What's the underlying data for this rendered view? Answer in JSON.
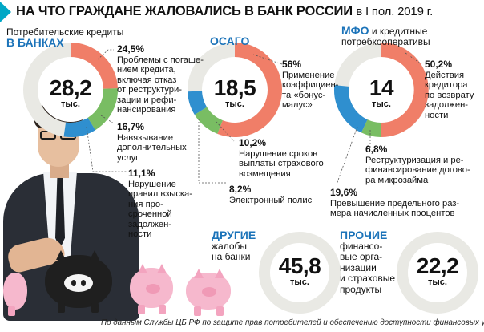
{
  "title": {
    "main": "НА ЧТО ГРАЖДАНЕ ЖАЛОВАЛИСЬ В БАНК РОССИИ",
    "period": "в I пол. 2019 г."
  },
  "colors": {
    "accent": "#1b73b9",
    "coral": "#f07e68",
    "green": "#79bd63",
    "blue": "#2f8fcf",
    "grey": "#e9e9e4",
    "title_arrow": "#00a8c6"
  },
  "sections": {
    "banks": {
      "head_line1": "Потребительские кредиты",
      "head_line2": "В БАНКАХ",
      "total": "28,2",
      "unit": "тыс."
    },
    "osago": {
      "head": "ОСАГО",
      "total": "18,5",
      "unit": "тыс."
    },
    "mfo": {
      "head_hl": "МФО",
      "head_rest": " и кредитные",
      "head_line2": "потребкооперативы",
      "total": "14",
      "unit": "тыс."
    },
    "other": {
      "head_hl": "ДРУГИЕ",
      "head_line2": "жалобы",
      "head_line3": "на банки",
      "total": "45,8",
      "unit": "тыс."
    },
    "misc": {
      "head_hl": "ПРОЧИЕ",
      "head_line2": "финансо-",
      "head_line3": "вые орга-",
      "head_line4": "низации",
      "head_line5": "и страховые",
      "head_line6": "продукты",
      "total": "22,2",
      "unit": "тыс."
    }
  },
  "labels": {
    "b1": {
      "pct": "24,5%",
      "l1": "Проблемы с погаше-",
      "l2": "нием кредита,",
      "l3": "включая отказ",
      "l4": "от реструктури-",
      "l5": "зации и рефи-",
      "l6": "нансирования"
    },
    "b2": {
      "pct": "16,7%",
      "l1": "Навязывание",
      "l2": "дополнительных",
      "l3": "услуг"
    },
    "b3": {
      "pct": "11,1%",
      "l1": "Нарушение",
      "l2": "правил взыска-",
      "l3": "ния про-",
      "l4": "сроченной",
      "l5": "задолжен-",
      "l6": "ности"
    },
    "o1": {
      "pct": "56%",
      "l1": "Применение",
      "l2": "коэффициен-",
      "l3": "та «бонус-",
      "l4": "малус»"
    },
    "o2": {
      "pct": "10,2%",
      "l1": "Нарушение сроков",
      "l2": "выплаты страхового",
      "l3": "возмещения"
    },
    "o3": {
      "pct": "8,2%",
      "l1": "Электронный полис"
    },
    "m1": {
      "pct": "50,2%",
      "l1": "Действия",
      "l2": "кредитора",
      "l3": "по возврату",
      "l4": "задолжен-",
      "l5": "ности"
    },
    "m2": {
      "pct": "6,8%",
      "l1": "Реструктуризация и ре-",
      "l2": "финансирование догово-",
      "l3": "ра микрозайма"
    },
    "m3": {
      "pct": "19,6%",
      "l1": "Превышение предельного раз-",
      "l2": "мера начисленных процентов"
    }
  },
  "footer": "По данным Службы ЦБ РФ по защите прав потребителей и обеспечению доступности финансовых услуг",
  "chart_data": [
    {
      "type": "pie",
      "title": "Потребительские кредиты в банках",
      "total": "28,2 тыс.",
      "categories": [
        "Проблемы с погашением кредита, включая отказ от реструктуризации и рефинансирования",
        "Навязывание дополнительных услуг",
        "Нарушение правил взыскания просроченной задолженности"
      ],
      "values": [
        24.5,
        16.7,
        11.1
      ],
      "colors": [
        "#f07e68",
        "#79bd63",
        "#2f8fcf"
      ]
    },
    {
      "type": "pie",
      "title": "ОСАГО",
      "total": "18,5 тыс.",
      "categories": [
        "Применение коэффициента «бонус-малус»",
        "Нарушение сроков выплаты страхового возмещения",
        "Электронный полис"
      ],
      "values": [
        56,
        10.2,
        8.2
      ],
      "colors": [
        "#f07e68",
        "#79bd63",
        "#2f8fcf"
      ]
    },
    {
      "type": "pie",
      "title": "МФО и кредитные потребкооперативы",
      "total": "14 тыс.",
      "categories": [
        "Действия кредитора по возврату задолженности",
        "Реструктуризация и рефинансирование договора микрозайма",
        "Превышение предельного размера начисленных процентов"
      ],
      "values": [
        50.2,
        6.8,
        19.6
      ],
      "colors": [
        "#f07e68",
        "#79bd63",
        "#2f8fcf"
      ]
    },
    {
      "type": "pie",
      "title": "Другие жалобы на банки",
      "total": "45,8 тыс.",
      "categories": [],
      "values": []
    },
    {
      "type": "pie",
      "title": "Прочие финансовые организации и страховые продукты",
      "total": "22,2 тыс.",
      "categories": [],
      "values": []
    }
  ]
}
